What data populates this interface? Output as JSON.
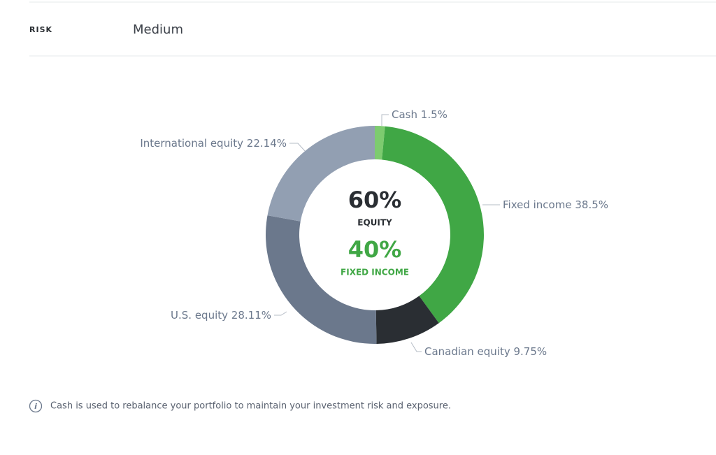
{
  "risk": {
    "label": "RISK",
    "value": "Medium"
  },
  "chart_data": {
    "type": "pie",
    "donut": true,
    "categories": [
      "Cash",
      "Fixed income",
      "Canadian equity",
      "U.S. equity",
      "International equity"
    ],
    "values": [
      1.5,
      38.5,
      9.75,
      28.11,
      22.14
    ],
    "value_labels": [
      "1.5%",
      "38.5%",
      "9.75%",
      "28.11%",
      "22.14%"
    ],
    "colors": [
      "#7dcb6f",
      "#40a745",
      "#2a2e33",
      "#6b788c",
      "#929fb2"
    ],
    "center_labels": [
      {
        "text": "60%",
        "caption": "EQUITY",
        "color": "#2a2e33"
      },
      {
        "text": "40%",
        "caption": "FIXED INCOME",
        "color": "#40a745"
      }
    ]
  },
  "note": "Cash is used to rebalance your portfolio to maintain your investment risk and exposure."
}
